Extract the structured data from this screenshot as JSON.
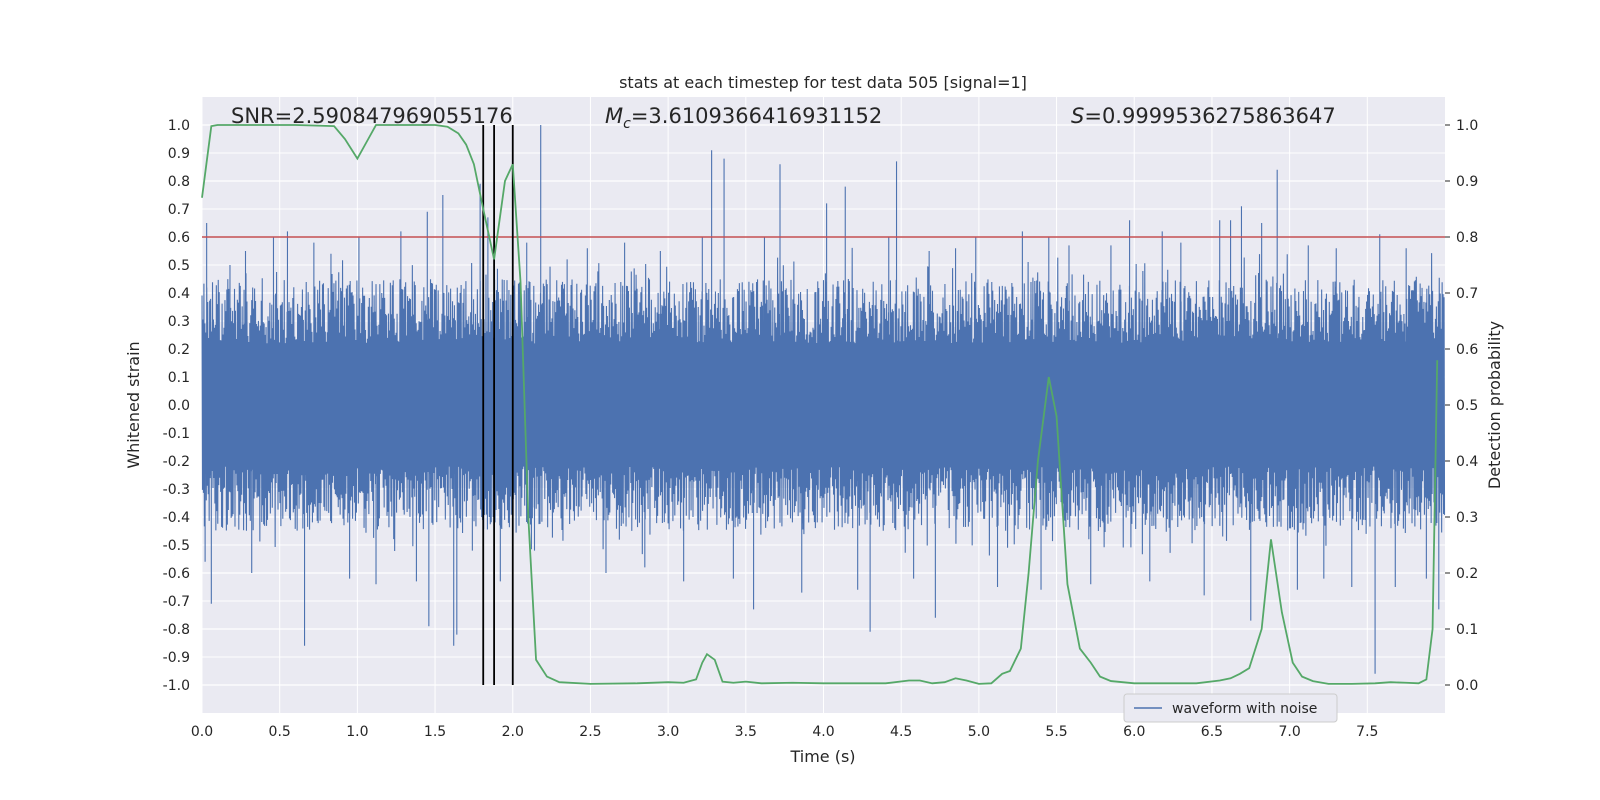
{
  "chart_data": {
    "type": "line",
    "title": "stats at each timestep for test data 505 [signal=1]",
    "xlabel": "Time (s)",
    "ylabel": "Whitened strain",
    "y2label": "Detection probability",
    "xlim": [
      0.0,
      8.0
    ],
    "ylim": [
      -1.1,
      1.1
    ],
    "y2lim": [
      -0.05,
      1.05
    ],
    "xticks": [
      "0.0",
      "0.5",
      "1.0",
      "1.5",
      "2.0",
      "2.5",
      "3.0",
      "3.5",
      "4.0",
      "4.5",
      "5.0",
      "5.5",
      "6.0",
      "6.5",
      "7.0",
      "7.5"
    ],
    "yticks": [
      "1.0",
      "0.9",
      "0.8",
      "0.7",
      "0.6",
      "0.5",
      "0.4",
      "0.3",
      "0.2",
      "0.1",
      "0.0",
      "-0.1",
      "-0.2",
      "-0.3",
      "-0.4",
      "-0.5",
      "-0.6",
      "-0.7",
      "-0.8",
      "-0.9",
      "-1.0"
    ],
    "y2ticks": [
      "1.0",
      "0.9",
      "0.8",
      "0.7",
      "0.6",
      "0.5",
      "0.4",
      "0.3",
      "0.2",
      "0.1",
      "0.0"
    ],
    "grid": true,
    "legend": {
      "entries": [
        "waveform with noise"
      ],
      "placement": "lower-right"
    },
    "annotations": {
      "snr": "SNR=2.590847969055176",
      "mc_symbol": "M",
      "mc_sub": "c",
      "mc_value": "=3.6109366416931152",
      "s_symbol": "S",
      "s_value": "=0.9999536275863647"
    },
    "threshold": {
      "value": 0.8,
      "axis": "right",
      "color": "#c44e52"
    },
    "vertical_markers": [
      1.81,
      1.88,
      2.0
    ],
    "series": [
      {
        "name": "waveform with noise",
        "color": "#4c72b0",
        "axis": "left",
        "description_stats": {
          "typical_envelope": 0.45,
          "peak_max": 1.0,
          "peak_min": -0.96
        },
        "spikes": [
          [
            0.03,
            0.65
          ],
          [
            0.02,
            -0.56
          ],
          [
            0.06,
            -0.71
          ],
          [
            0.18,
            0.5
          ],
          [
            0.28,
            0.55
          ],
          [
            0.32,
            -0.6
          ],
          [
            0.46,
            0.6
          ],
          [
            0.55,
            0.62
          ],
          [
            0.66,
            -0.86
          ],
          [
            0.72,
            0.58
          ],
          [
            0.83,
            0.54
          ],
          [
            0.95,
            -0.62
          ],
          [
            1.01,
            0.6
          ],
          [
            1.12,
            -0.64
          ],
          [
            1.28,
            0.62
          ],
          [
            1.38,
            -0.63
          ],
          [
            1.45,
            0.69
          ],
          [
            1.46,
            -0.79
          ],
          [
            1.55,
            0.75
          ],
          [
            1.62,
            -0.86
          ],
          [
            1.64,
            -0.82
          ],
          [
            1.74,
            -0.52
          ],
          [
            1.79,
            0.79
          ],
          [
            1.84,
            0.67
          ],
          [
            1.92,
            -0.63
          ],
          [
            2.09,
            0.58
          ],
          [
            2.14,
            -0.52
          ],
          [
            2.18,
            1.0
          ],
          [
            2.35,
            0.52
          ],
          [
            2.48,
            0.56
          ],
          [
            2.6,
            -0.6
          ],
          [
            2.72,
            0.58
          ],
          [
            2.85,
            -0.58
          ],
          [
            2.95,
            0.55
          ],
          [
            3.1,
            -0.63
          ],
          [
            3.22,
            0.6
          ],
          [
            3.28,
            0.91
          ],
          [
            3.36,
            0.88
          ],
          [
            3.42,
            -0.62
          ],
          [
            3.55,
            -0.73
          ],
          [
            3.62,
            0.6
          ],
          [
            3.72,
            0.86
          ],
          [
            3.86,
            -0.67
          ],
          [
            4.02,
            0.72
          ],
          [
            4.14,
            0.78
          ],
          [
            4.22,
            -0.66
          ],
          [
            4.3,
            -0.81
          ],
          [
            4.42,
            0.6
          ],
          [
            4.47,
            0.87
          ],
          [
            4.58,
            -0.62
          ],
          [
            4.68,
            0.55
          ],
          [
            4.72,
            -0.76
          ],
          [
            4.85,
            0.56
          ],
          [
            4.98,
            0.6
          ],
          [
            5.12,
            -0.65
          ],
          [
            5.28,
            0.62
          ],
          [
            5.4,
            -0.66
          ],
          [
            5.45,
            0.6
          ],
          [
            5.58,
            0.57
          ],
          [
            5.72,
            -0.64
          ],
          [
            5.85,
            0.57
          ],
          [
            5.97,
            0.66
          ],
          [
            6.1,
            -0.63
          ],
          [
            6.18,
            0.62
          ],
          [
            6.3,
            0.58
          ],
          [
            6.45,
            -0.68
          ],
          [
            6.55,
            0.66
          ],
          [
            6.62,
            0.66
          ],
          [
            6.69,
            0.71
          ],
          [
            6.75,
            -0.77
          ],
          [
            6.82,
            0.65
          ],
          [
            6.92,
            0.84
          ],
          [
            7.05,
            -0.66
          ],
          [
            7.12,
            0.57
          ],
          [
            7.22,
            -0.62
          ],
          [
            7.3,
            0.56
          ],
          [
            7.4,
            -0.65
          ],
          [
            7.55,
            -0.96
          ],
          [
            7.58,
            0.61
          ],
          [
            7.68,
            -0.65
          ],
          [
            7.75,
            0.56
          ],
          [
            7.88,
            -0.62
          ],
          [
            7.96,
            -0.73
          ]
        ]
      },
      {
        "name": "",
        "color": "#55a868",
        "axis": "right",
        "x": [
          0.0,
          0.06,
          0.1,
          0.2,
          0.4,
          0.6,
          0.85,
          0.92,
          1.0,
          1.07,
          1.12,
          1.2,
          1.5,
          1.58,
          1.65,
          1.7,
          1.75,
          1.81,
          1.88,
          1.95,
          2.0,
          2.05,
          2.1,
          2.15,
          2.22,
          2.3,
          2.5,
          2.8,
          3.0,
          3.1,
          3.18,
          3.22,
          3.25,
          3.3,
          3.35,
          3.42,
          3.5,
          3.6,
          3.8,
          4.0,
          4.2,
          4.4,
          4.55,
          4.62,
          4.7,
          4.78,
          4.85,
          4.92,
          5.0,
          5.08,
          5.15,
          5.2,
          5.27,
          5.32,
          5.38,
          5.45,
          5.5,
          5.57,
          5.65,
          5.72,
          5.78,
          5.85,
          6.0,
          6.2,
          6.4,
          6.55,
          6.62,
          6.68,
          6.74,
          6.82,
          6.88,
          6.95,
          7.02,
          7.08,
          7.15,
          7.25,
          7.4,
          7.55,
          7.65,
          7.75,
          7.83,
          7.88,
          7.92,
          7.95
        ],
        "values": [
          0.87,
          0.998,
          1.0,
          1.0,
          1.0,
          1.0,
          0.998,
          0.975,
          0.94,
          0.975,
          1.0,
          1.0,
          1.0,
          0.997,
          0.985,
          0.965,
          0.93,
          0.85,
          0.76,
          0.9,
          0.93,
          0.72,
          0.3,
          0.045,
          0.015,
          0.005,
          0.002,
          0.003,
          0.005,
          0.004,
          0.01,
          0.04,
          0.055,
          0.045,
          0.006,
          0.004,
          0.006,
          0.003,
          0.004,
          0.003,
          0.003,
          0.003,
          0.008,
          0.008,
          0.003,
          0.005,
          0.012,
          0.008,
          0.002,
          0.003,
          0.02,
          0.025,
          0.065,
          0.2,
          0.4,
          0.55,
          0.48,
          0.18,
          0.065,
          0.04,
          0.015,
          0.007,
          0.003,
          0.003,
          0.003,
          0.008,
          0.012,
          0.02,
          0.03,
          0.1,
          0.26,
          0.13,
          0.04,
          0.015,
          0.007,
          0.002,
          0.002,
          0.003,
          0.005,
          0.004,
          0.003,
          0.01,
          0.1,
          0.58
        ]
      }
    ]
  }
}
